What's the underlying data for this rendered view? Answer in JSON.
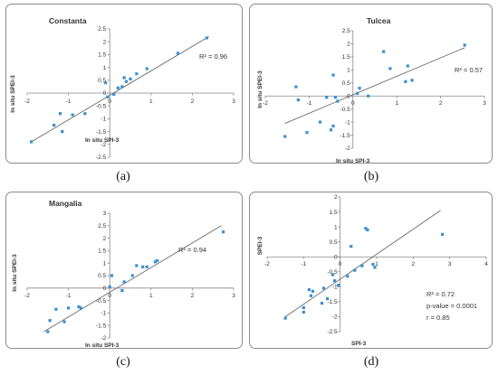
{
  "chart_data": [
    {
      "type": "scatter",
      "caption": "(a)",
      "title": "Constanta",
      "xlabel": "In situ SPI-3",
      "ylabel": "In situ SPEI-3",
      "xlim": [
        -2,
        3
      ],
      "ylim": [
        -2.5,
        2.5
      ],
      "xticks": [
        -2,
        -1,
        0,
        1,
        2,
        3
      ],
      "yticks": [
        -2.5,
        -2,
        -1.5,
        -1,
        -0.5,
        0,
        0.5,
        1,
        1.5,
        2,
        2.5
      ],
      "xtick_labels": [
        "-2",
        "-1",
        "0",
        "1",
        "2",
        "3"
      ],
      "ytick_labels": [
        "-2.5",
        "-2",
        "-1.5",
        "-1",
        "-0.5",
        "0",
        "0.5",
        "1",
        "1.5",
        "2",
        "2.5"
      ],
      "annotations": [
        "R² = 0.96"
      ],
      "trendline": [
        [
          -1.9,
          -1.9
        ],
        [
          2.4,
          2.2
        ]
      ],
      "marker_color": "#3b8fd0",
      "x": [
        -1.9,
        -1.35,
        -1.2,
        -1.15,
        -0.9,
        -0.6,
        -0.05,
        -0.1,
        0.1,
        0.2,
        0.3,
        0.4,
        0.35,
        0.5,
        0.65,
        0.9,
        1.65,
        2.35
      ],
      "y": [
        -1.9,
        -1.25,
        -0.8,
        -1.5,
        -0.85,
        -0.8,
        -0.15,
        0.4,
        -0.05,
        0.2,
        0.25,
        0.45,
        0.6,
        0.55,
        0.75,
        0.95,
        1.55,
        2.15
      ]
    },
    {
      "type": "scatter",
      "caption": "(b)",
      "title": "Tulcea",
      "xlabel": "In situ SPI-3",
      "ylabel": "In situ SPEI-3",
      "xlim": [
        -2,
        3
      ],
      "ylim": [
        -2,
        2.5
      ],
      "xticks": [
        -2,
        -1,
        0,
        1,
        2,
        3
      ],
      "yticks": [
        -2,
        -1.5,
        -1,
        -0.5,
        0,
        0.5,
        1,
        1.5,
        2,
        2.5
      ],
      "xtick_labels": [
        "-2",
        "-1",
        "0",
        "1",
        "2",
        "3"
      ],
      "ytick_labels": [
        "-2",
        "-1.5",
        "-1",
        "-0.5",
        "0",
        "0.5",
        "1",
        "1.5",
        "2",
        "2.5"
      ],
      "annotations": [
        "R² = 0.57"
      ],
      "trendline": [
        [
          -1.55,
          -1.05
        ],
        [
          2.55,
          1.85
        ]
      ],
      "marker_color": "#3b8fd0",
      "x": [
        -1.55,
        -1.3,
        -1.25,
        -1.05,
        -0.75,
        -0.6,
        -0.5,
        -0.45,
        -0.45,
        -0.4,
        -0.35,
        0.1,
        0.15,
        0.35,
        0.7,
        0.85,
        1.2,
        1.25,
        1.35,
        2.55
      ],
      "y": [
        -1.55,
        0.35,
        -0.15,
        -1.4,
        -1.0,
        -0.05,
        -1.3,
        -1.15,
        0.8,
        -0.05,
        -0.2,
        0.1,
        0.3,
        0.0,
        1.7,
        1.05,
        0.55,
        1.15,
        0.6,
        1.95
      ]
    },
    {
      "type": "scatter",
      "caption": "(c)",
      "title": "Mangalia",
      "xlabel": "In situ SPI-3",
      "ylabel": "In situ SPEI-3",
      "xlim": [
        -2,
        3
      ],
      "ylim": [
        -2,
        3
      ],
      "xticks": [
        -2,
        -1,
        0,
        1,
        2,
        3
      ],
      "yticks": [
        -2,
        -1.5,
        -1,
        -0.5,
        0,
        0.5,
        1,
        1.5,
        2,
        2.5,
        3
      ],
      "xtick_labels": [
        "-2",
        "-1",
        "0",
        "1",
        "2",
        "3"
      ],
      "ytick_labels": [
        "-2",
        "-1.5",
        "-1",
        "-0.5",
        "0",
        "0.5",
        "1",
        "1.5",
        "2",
        "2.5",
        "3"
      ],
      "annotations": [
        "R² = 0.94"
      ],
      "trendline": [
        [
          -1.6,
          -1.75
        ],
        [
          2.7,
          2.5
        ]
      ],
      "marker_color": "#3b8fd0",
      "x": [
        -1.5,
        -1.45,
        -1.3,
        -1.1,
        -1.0,
        -0.75,
        -0.7,
        0.0,
        0.05,
        0.3,
        0.35,
        0.55,
        0.65,
        0.8,
        0.9,
        1.1,
        1.15,
        2.75
      ],
      "y": [
        -1.75,
        -1.3,
        -0.85,
        -1.35,
        -0.8,
        -0.75,
        -0.8,
        0.05,
        0.5,
        -0.1,
        0.25,
        0.5,
        0.9,
        0.85,
        0.85,
        1.05,
        1.1,
        2.25
      ]
    },
    {
      "type": "scatter",
      "caption": "(d)",
      "title": "",
      "xlabel": "SPI-3",
      "ylabel": "SPEI-3",
      "xlim": [
        -2,
        4
      ],
      "ylim": [
        -2.5,
        2
      ],
      "xticks": [
        -2,
        -1,
        0,
        1,
        2,
        3,
        4
      ],
      "yticks": [
        -2.5,
        -2,
        -1.5,
        -1,
        -0.5,
        0,
        0.5,
        1,
        1.5,
        2
      ],
      "xtick_labels": [
        "-2",
        "-1",
        "0",
        "1",
        "2",
        "3",
        "4"
      ],
      "ytick_labels": [
        "-2.5",
        "-2",
        "-1.5",
        "-1",
        "-0.5",
        "0",
        "0.5",
        "1",
        "1.5",
        "2"
      ],
      "annotations": [
        "R² = 0.72",
        "p-value = 0.0001",
        "r = 0.85"
      ],
      "trendline": [
        [
          -1.5,
          -2.0
        ],
        [
          2.75,
          1.55
        ]
      ],
      "marker_color": "#3b8fd0",
      "x": [
        -1.5,
        -1.0,
        -1.0,
        -0.85,
        -0.8,
        -0.75,
        -0.5,
        -0.45,
        -0.35,
        -0.2,
        -0.15,
        -0.05,
        0.2,
        0.3,
        0.4,
        0.6,
        0.7,
        0.75,
        0.9,
        0.95,
        2.8
      ],
      "y": [
        -2.05,
        -1.85,
        -1.7,
        -1.1,
        -1.3,
        -1.15,
        -1.55,
        -1.05,
        -1.4,
        -0.6,
        -0.8,
        -0.95,
        -0.65,
        0.35,
        -0.45,
        -0.3,
        0.95,
        0.9,
        -0.25,
        -0.35,
        0.75
      ]
    }
  ]
}
